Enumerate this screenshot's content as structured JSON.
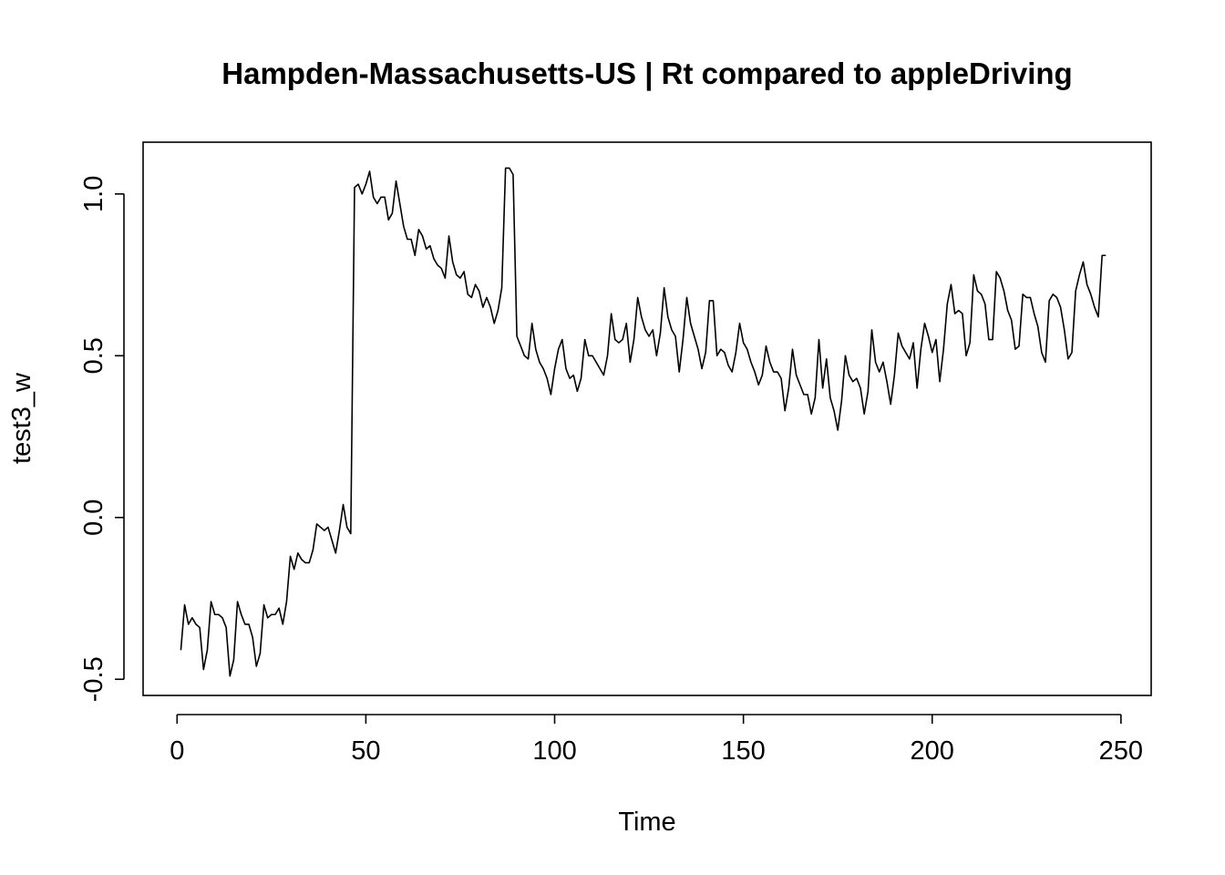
{
  "chart_data": {
    "type": "line",
    "title": "Hampden-Massachusetts-US | Rt compared to appleDriving",
    "xlabel": "Time",
    "ylabel": "test3_w",
    "xlim": [
      -9,
      258
    ],
    "ylim": [
      -0.55,
      1.16
    ],
    "x_ticks": [
      0,
      50,
      100,
      150,
      200,
      250
    ],
    "x_tick_labels": [
      "0",
      "50",
      "100",
      "150",
      "200",
      "250"
    ],
    "y_ticks": [
      -0.5,
      0.0,
      0.5,
      1.0
    ],
    "y_tick_labels": [
      "-0.5",
      "0.0",
      "0.5",
      "1.0"
    ],
    "grid": false,
    "x_start": 1,
    "series": [
      {
        "values": [
          -0.41,
          -0.27,
          -0.33,
          -0.31,
          -0.33,
          -0.34,
          -0.47,
          -0.41,
          -0.26,
          -0.3,
          -0.3,
          -0.31,
          -0.34,
          -0.49,
          -0.44,
          -0.26,
          -0.3,
          -0.33,
          -0.33,
          -0.37,
          -0.46,
          -0.42,
          -0.27,
          -0.31,
          -0.3,
          -0.3,
          -0.28,
          -0.33,
          -0.26,
          -0.12,
          -0.16,
          -0.11,
          -0.13,
          -0.14,
          -0.14,
          -0.1,
          -0.02,
          -0.03,
          -0.04,
          -0.03,
          -0.07,
          -0.11,
          -0.04,
          0.04,
          -0.03,
          -0.05,
          1.02,
          1.03,
          1.0,
          1.03,
          1.07,
          0.99,
          0.97,
          0.99,
          0.99,
          0.92,
          0.94,
          1.04,
          0.97,
          0.9,
          0.86,
          0.86,
          0.81,
          0.89,
          0.87,
          0.83,
          0.84,
          0.8,
          0.78,
          0.77,
          0.74,
          0.87,
          0.79,
          0.75,
          0.74,
          0.76,
          0.69,
          0.68,
          0.72,
          0.7,
          0.65,
          0.68,
          0.65,
          0.6,
          0.64,
          0.71,
          1.08,
          1.08,
          1.06,
          0.56,
          0.53,
          0.5,
          0.49,
          0.6,
          0.52,
          0.48,
          0.46,
          0.43,
          0.38,
          0.46,
          0.52,
          0.55,
          0.46,
          0.43,
          0.44,
          0.39,
          0.43,
          0.55,
          0.5,
          0.5,
          0.48,
          0.46,
          0.44,
          0.5,
          0.63,
          0.55,
          0.54,
          0.55,
          0.6,
          0.48,
          0.55,
          0.68,
          0.62,
          0.58,
          0.56,
          0.58,
          0.5,
          0.57,
          0.71,
          0.62,
          0.58,
          0.56,
          0.45,
          0.55,
          0.68,
          0.6,
          0.56,
          0.52,
          0.46,
          0.51,
          0.67,
          0.67,
          0.5,
          0.52,
          0.51,
          0.47,
          0.45,
          0.51,
          0.6,
          0.54,
          0.52,
          0.48,
          0.45,
          0.41,
          0.44,
          0.53,
          0.48,
          0.45,
          0.45,
          0.43,
          0.33,
          0.4,
          0.52,
          0.44,
          0.41,
          0.38,
          0.38,
          0.32,
          0.37,
          0.55,
          0.4,
          0.49,
          0.37,
          0.33,
          0.27,
          0.36,
          0.5,
          0.44,
          0.42,
          0.43,
          0.4,
          0.32,
          0.39,
          0.58,
          0.48,
          0.45,
          0.48,
          0.42,
          0.35,
          0.44,
          0.57,
          0.53,
          0.51,
          0.49,
          0.54,
          0.4,
          0.52,
          0.6,
          0.56,
          0.51,
          0.55,
          0.42,
          0.52,
          0.66,
          0.72,
          0.63,
          0.64,
          0.63,
          0.5,
          0.54,
          0.75,
          0.7,
          0.69,
          0.66,
          0.55,
          0.55,
          0.76,
          0.74,
          0.7,
          0.64,
          0.61,
          0.52,
          0.53,
          0.69,
          0.68,
          0.68,
          0.63,
          0.59,
          0.51,
          0.48,
          0.67,
          0.69,
          0.68,
          0.65,
          0.58,
          0.49,
          0.51,
          0.7,
          0.75,
          0.79,
          0.72,
          0.69,
          0.65,
          0.62,
          0.81,
          0.81
        ]
      }
    ]
  }
}
